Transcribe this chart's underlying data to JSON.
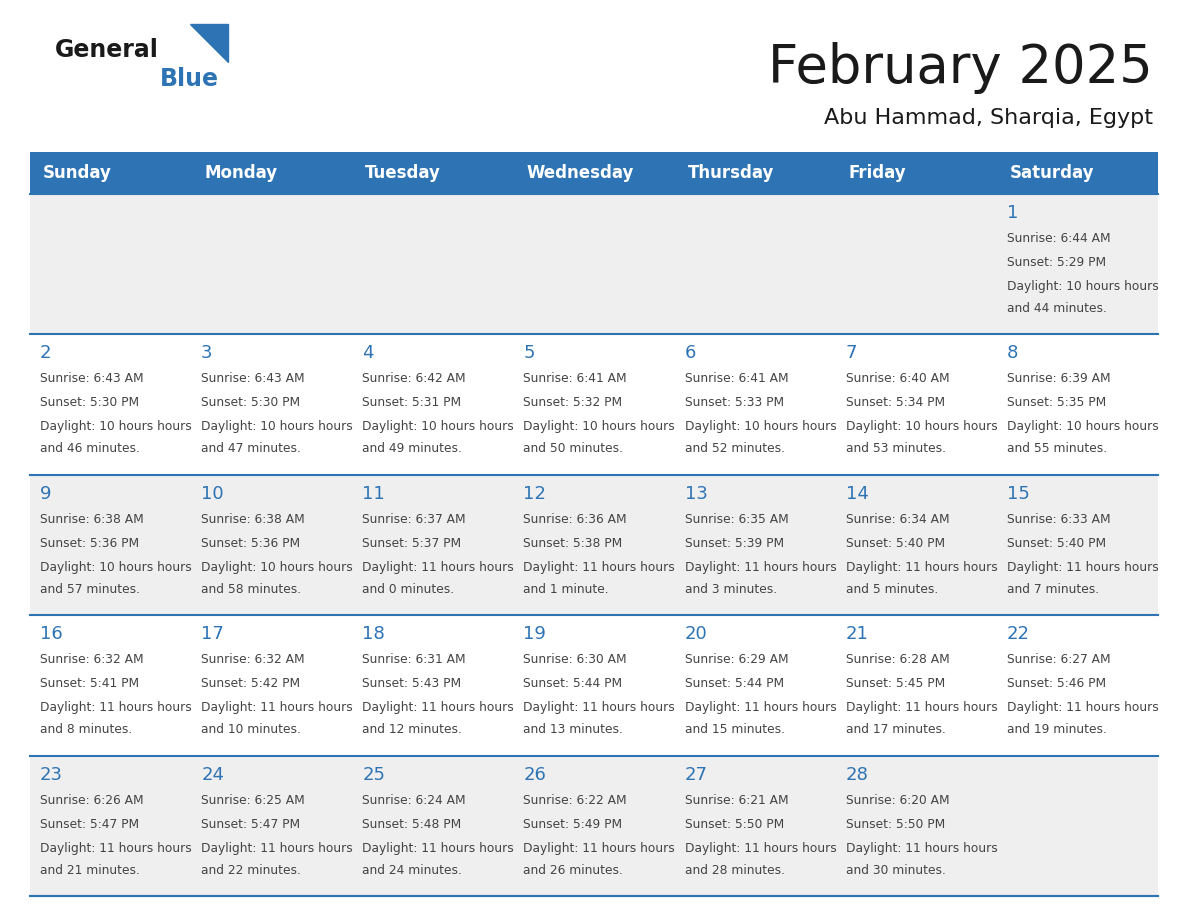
{
  "title": "February 2025",
  "subtitle": "Abu Hammad, Sharqia, Egypt",
  "header_bg": "#2E74B5",
  "header_text_color": "#FFFFFF",
  "cell_bg_row0": "#EFEFEF",
  "cell_bg_row1": "#FFFFFF",
  "cell_bg_row2": "#EFEFEF",
  "cell_bg_row3": "#FFFFFF",
  "cell_bg_row4": "#EFEFEF",
  "day_headers": [
    "Sunday",
    "Monday",
    "Tuesday",
    "Wednesday",
    "Thursday",
    "Friday",
    "Saturday"
  ],
  "title_color": "#1a1a1a",
  "subtitle_color": "#1a1a1a",
  "day_num_color": "#2E74B5",
  "cell_text_color": "#444444",
  "logo_general_color": "#1a1a1a",
  "logo_blue_color": "#2E74B5",
  "calendar_data": [
    [
      null,
      null,
      null,
      null,
      null,
      null,
      {
        "day": "1",
        "sunrise": "6:44 AM",
        "sunset": "5:29 PM",
        "daylight": "10 hours and 44 minutes."
      }
    ],
    [
      {
        "day": "2",
        "sunrise": "6:43 AM",
        "sunset": "5:30 PM",
        "daylight": "10 hours and 46 minutes."
      },
      {
        "day": "3",
        "sunrise": "6:43 AM",
        "sunset": "5:30 PM",
        "daylight": "10 hours and 47 minutes."
      },
      {
        "day": "4",
        "sunrise": "6:42 AM",
        "sunset": "5:31 PM",
        "daylight": "10 hours and 49 minutes."
      },
      {
        "day": "5",
        "sunrise": "6:41 AM",
        "sunset": "5:32 PM",
        "daylight": "10 hours and 50 minutes."
      },
      {
        "day": "6",
        "sunrise": "6:41 AM",
        "sunset": "5:33 PM",
        "daylight": "10 hours and 52 minutes."
      },
      {
        "day": "7",
        "sunrise": "6:40 AM",
        "sunset": "5:34 PM",
        "daylight": "10 hours and 53 minutes."
      },
      {
        "day": "8",
        "sunrise": "6:39 AM",
        "sunset": "5:35 PM",
        "daylight": "10 hours and 55 minutes."
      }
    ],
    [
      {
        "day": "9",
        "sunrise": "6:38 AM",
        "sunset": "5:36 PM",
        "daylight": "10 hours and 57 minutes."
      },
      {
        "day": "10",
        "sunrise": "6:38 AM",
        "sunset": "5:36 PM",
        "daylight": "10 hours and 58 minutes."
      },
      {
        "day": "11",
        "sunrise": "6:37 AM",
        "sunset": "5:37 PM",
        "daylight": "11 hours and 0 minutes."
      },
      {
        "day": "12",
        "sunrise": "6:36 AM",
        "sunset": "5:38 PM",
        "daylight": "11 hours and 1 minute."
      },
      {
        "day": "13",
        "sunrise": "6:35 AM",
        "sunset": "5:39 PM",
        "daylight": "11 hours and 3 minutes."
      },
      {
        "day": "14",
        "sunrise": "6:34 AM",
        "sunset": "5:40 PM",
        "daylight": "11 hours and 5 minutes."
      },
      {
        "day": "15",
        "sunrise": "6:33 AM",
        "sunset": "5:40 PM",
        "daylight": "11 hours and 7 minutes."
      }
    ],
    [
      {
        "day": "16",
        "sunrise": "6:32 AM",
        "sunset": "5:41 PM",
        "daylight": "11 hours and 8 minutes."
      },
      {
        "day": "17",
        "sunrise": "6:32 AM",
        "sunset": "5:42 PM",
        "daylight": "11 hours and 10 minutes."
      },
      {
        "day": "18",
        "sunrise": "6:31 AM",
        "sunset": "5:43 PM",
        "daylight": "11 hours and 12 minutes."
      },
      {
        "day": "19",
        "sunrise": "6:30 AM",
        "sunset": "5:44 PM",
        "daylight": "11 hours and 13 minutes."
      },
      {
        "day": "20",
        "sunrise": "6:29 AM",
        "sunset": "5:44 PM",
        "daylight": "11 hours and 15 minutes."
      },
      {
        "day": "21",
        "sunrise": "6:28 AM",
        "sunset": "5:45 PM",
        "daylight": "11 hours and 17 minutes."
      },
      {
        "day": "22",
        "sunrise": "6:27 AM",
        "sunset": "5:46 PM",
        "daylight": "11 hours and 19 minutes."
      }
    ],
    [
      {
        "day": "23",
        "sunrise": "6:26 AM",
        "sunset": "5:47 PM",
        "daylight": "11 hours and 21 minutes."
      },
      {
        "day": "24",
        "sunrise": "6:25 AM",
        "sunset": "5:47 PM",
        "daylight": "11 hours and 22 minutes."
      },
      {
        "day": "25",
        "sunrise": "6:24 AM",
        "sunset": "5:48 PM",
        "daylight": "11 hours and 24 minutes."
      },
      {
        "day": "26",
        "sunrise": "6:22 AM",
        "sunset": "5:49 PM",
        "daylight": "11 hours and 26 minutes."
      },
      {
        "day": "27",
        "sunrise": "6:21 AM",
        "sunset": "5:50 PM",
        "daylight": "11 hours and 28 minutes."
      },
      {
        "day": "28",
        "sunrise": "6:20 AM",
        "sunset": "5:50 PM",
        "daylight": "11 hours and 30 minutes."
      },
      null
    ]
  ]
}
